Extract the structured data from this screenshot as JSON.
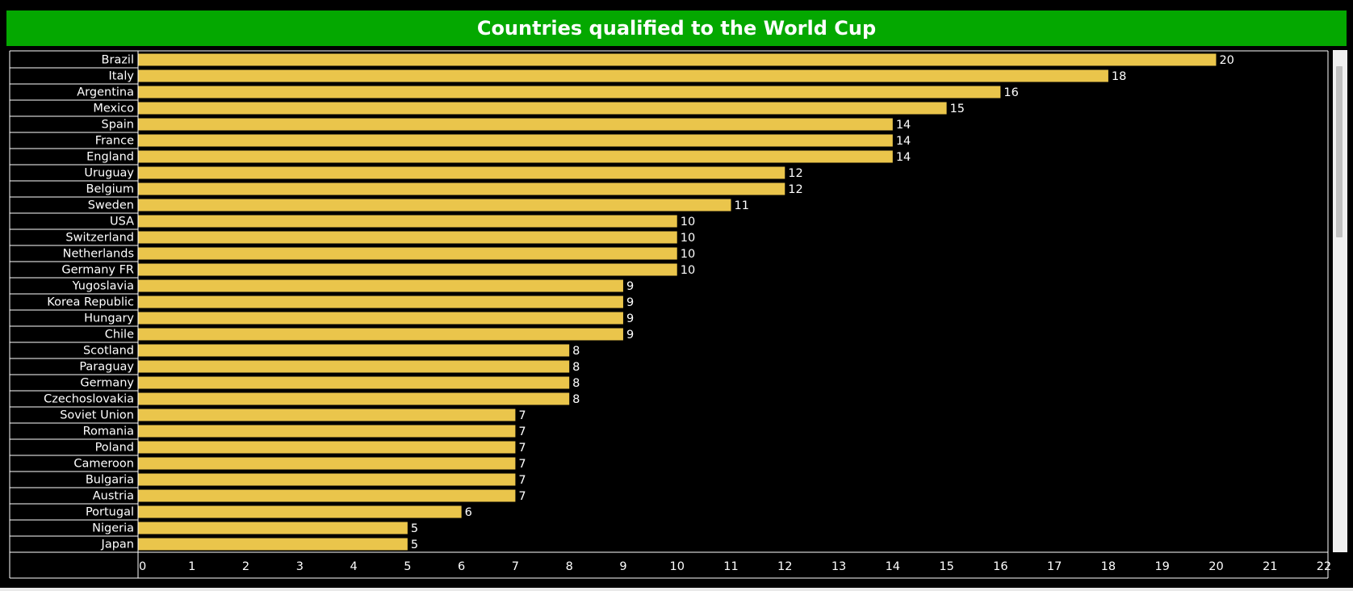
{
  "colors": {
    "background": "#000000",
    "title_bar": "#04a800",
    "bar": "#eac54b",
    "text": "#ffffff"
  },
  "chart_data": {
    "type": "bar",
    "orientation": "horizontal",
    "title": "Countries qualified to the World Cup",
    "xlabel": "",
    "ylabel": "",
    "xlim": [
      0,
      22
    ],
    "xticks": [
      0,
      1,
      2,
      3,
      4,
      5,
      6,
      7,
      8,
      9,
      10,
      11,
      12,
      13,
      14,
      15,
      16,
      17,
      18,
      19,
      20,
      21,
      22
    ],
    "categories": [
      "Brazil",
      "Italy",
      "Argentina",
      "Mexico",
      "Spain",
      "France",
      "England",
      "Uruguay",
      "Belgium",
      "Sweden",
      "USA",
      "Switzerland",
      "Netherlands",
      "Germany FR",
      "Yugoslavia",
      "Korea Republic",
      "Hungary",
      "Chile",
      "Scotland",
      "Paraguay",
      "Germany",
      "Czechoslovakia",
      "Soviet Union",
      "Romania",
      "Poland",
      "Cameroon",
      "Bulgaria",
      "Austria",
      "Portugal",
      "Nigeria",
      "Japan"
    ],
    "values": [
      20,
      18,
      16,
      15,
      14,
      14,
      14,
      12,
      12,
      11,
      10,
      10,
      10,
      10,
      9,
      9,
      9,
      9,
      8,
      8,
      8,
      8,
      7,
      7,
      7,
      7,
      7,
      7,
      6,
      5,
      5
    ],
    "data_labels": true,
    "grid": false
  }
}
